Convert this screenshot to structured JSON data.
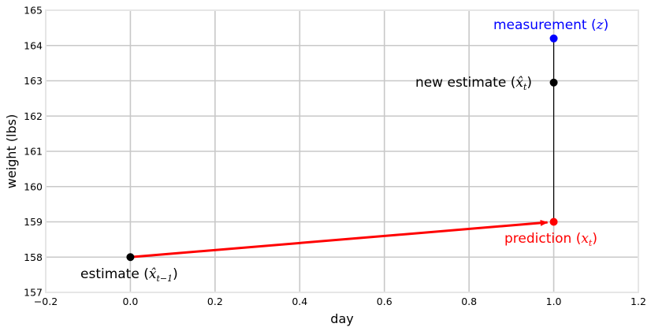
{
  "chart_data": {
    "type": "scatter",
    "title": "",
    "xlabel": "day",
    "ylabel": "weight (lbs)",
    "xlim": [
      -0.2,
      1.2
    ],
    "ylim": [
      157,
      165
    ],
    "x_ticks": [
      -0.2,
      0.0,
      0.2,
      0.4,
      0.6,
      0.8,
      1.0,
      1.2
    ],
    "x_tick_labels": [
      "−0.2",
      "0.0",
      "0.2",
      "0.4",
      "0.6",
      "0.8",
      "1.0",
      "1.2"
    ],
    "y_ticks": [
      157,
      158,
      159,
      160,
      161,
      162,
      163,
      164,
      165
    ],
    "y_tick_labels": [
      "157",
      "158",
      "159",
      "160",
      "161",
      "162",
      "163",
      "164",
      "165"
    ],
    "grid": true,
    "points": [
      {
        "label_text": "estimate (",
        "label_math": "x̂",
        "label_sub": "t−1",
        "x": 0.0,
        "y": 158.0,
        "color": "#000000",
        "label_color": "#000000"
      },
      {
        "label_text": "prediction (",
        "label_math": "x",
        "label_sub": "t",
        "x": 1.0,
        "y": 159.0,
        "color": "#ff0000",
        "label_color": "#ff0000"
      },
      {
        "label_text": "measurement (",
        "label_math": "z",
        "label_sub": "",
        "x": 1.0,
        "y": 164.2,
        "color": "#0000ff",
        "label_color": "#0000ff"
      },
      {
        "label_text": "new estimate (",
        "label_math": "x̂",
        "label_sub": "t",
        "x": 1.0,
        "y": 162.95,
        "color": "#000000",
        "label_color": "#000000"
      }
    ],
    "arrow": {
      "from": [
        0.0,
        158.0
      ],
      "to": [
        1.0,
        159.0
      ],
      "color": "#ff0000"
    },
    "vertical_line": {
      "x": 1.0,
      "y_from": 159.0,
      "y_to": 164.2,
      "color": "#000000"
    }
  }
}
